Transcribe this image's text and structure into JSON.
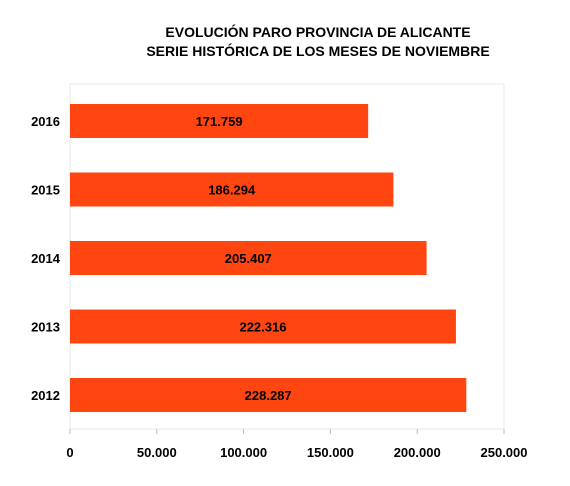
{
  "chart_data": {
    "type": "bar",
    "orientation": "horizontal",
    "title": "EVOLUCIÓN PARO PROVINCIA DE ALICANTE",
    "subtitle": "SERIE HISTÓRICA DE LOS MESES DE NOVIEMBRE",
    "categories": [
      "2016",
      "2015",
      "2014",
      "2013",
      "2012"
    ],
    "values": [
      171759,
      186294,
      205407,
      222316,
      228287
    ],
    "data_labels": [
      "171.759",
      "186.294",
      "205.407",
      "222.316",
      "228.287"
    ],
    "xlim": [
      0,
      250000
    ],
    "x_ticks": [
      0,
      50000,
      100000,
      150000,
      200000,
      250000
    ],
    "x_tick_labels": [
      "0",
      "50.000",
      "100.000",
      "150.000",
      "200.000",
      "250.000"
    ],
    "bar_color": "#ff4510",
    "grid": false,
    "legend": "none"
  }
}
